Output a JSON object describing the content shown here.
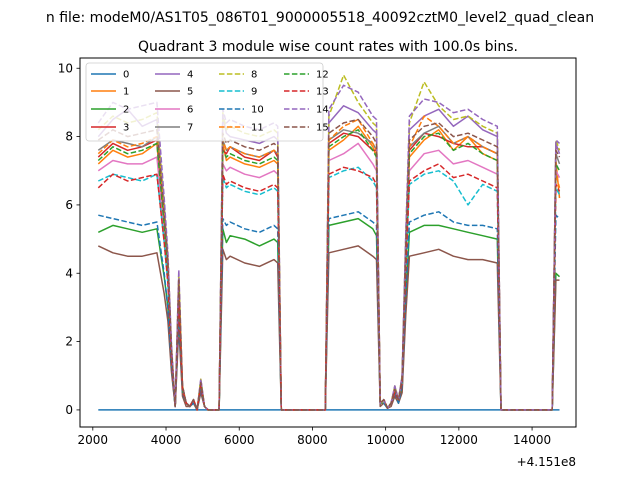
{
  "figure": {
    "suptitle": "n file: modeM0/AS1T05_086T01_9000005518_40092cztM0_level2_quad_clean",
    "offset_label": "+4.151e8"
  },
  "chart_data": {
    "type": "line",
    "title": "Quadrant 3 module wise count rates with 100.0s bins.",
    "xlabel": "",
    "ylabel": "",
    "xlim": [
      1650,
      15200
    ],
    "ylim": [
      -0.5,
      10.3
    ],
    "x_offset": 415100000,
    "xticks": [
      2000,
      4000,
      6000,
      8000,
      10000,
      12000,
      14000
    ],
    "yticks": [
      0,
      2,
      4,
      6,
      8,
      10
    ],
    "grid": false,
    "legend": {
      "placement": "upper-left",
      "columns": 4
    },
    "x": [
      2150,
      2550,
      2950,
      3350,
      3750,
      3950,
      4050,
      4150,
      4250,
      4350,
      4450,
      4550,
      4650,
      4750,
      4850,
      4950,
      5050,
      5150,
      5250,
      5350,
      5450,
      5550,
      5650,
      5750,
      6150,
      6550,
      6950,
      7050,
      7150,
      7550,
      7950,
      8150,
      8250,
      8350,
      8450,
      8850,
      9250,
      9650,
      9750,
      9850,
      9950,
      10050,
      10150,
      10250,
      10350,
      10450,
      10550,
      10650,
      11050,
      11450,
      11850,
      12250,
      12650,
      13050,
      13150,
      13250,
      13350,
      13750,
      14150,
      14450,
      14550,
      14650,
      14750
    ],
    "series": [
      {
        "name": "0",
        "color": "#1f77b4",
        "dash": "solid",
        "values": [
          0,
          0,
          0,
          0,
          0,
          0,
          0,
          0,
          0,
          0,
          0,
          0,
          0,
          0,
          0,
          0,
          0,
          0,
          0,
          0,
          0,
          0,
          0,
          0,
          0,
          0,
          0,
          0,
          0,
          0,
          0,
          0,
          0,
          0,
          0,
          0,
          0,
          0,
          0,
          0,
          0,
          0,
          0,
          0,
          0,
          0,
          0,
          0,
          0,
          0,
          0,
          0,
          0,
          0,
          0,
          0,
          0,
          0,
          0,
          0,
          0,
          0,
          0
        ]
      },
      {
        "name": "1",
        "color": "#ff7f0e",
        "dash": "solid",
        "values": [
          7.2,
          7.6,
          7.4,
          7.5,
          7.8,
          5.3,
          4.0,
          1.6,
          0.1,
          3.5,
          0.6,
          0.2,
          0.1,
          0.3,
          0.0,
          0.8,
          0.1,
          0.0,
          0.0,
          0.0,
          0.0,
          7.8,
          7.3,
          7.4,
          7.2,
          7.1,
          7.3,
          7.2,
          0,
          0,
          0,
          0,
          0,
          0,
          7.6,
          7.9,
          8.3,
          7.7,
          7.4,
          0.2,
          0.3,
          0.05,
          0.2,
          0.6,
          0.3,
          0.9,
          4.5,
          7.4,
          7.9,
          8.2,
          7.6,
          8.0,
          7.5,
          7.3,
          0,
          0,
          0,
          0,
          0,
          0,
          0,
          7.3,
          6.2
        ]
      },
      {
        "name": "2",
        "color": "#2ca02c",
        "dash": "solid",
        "values": [
          5.2,
          5.4,
          5.3,
          5.2,
          5.3,
          3.9,
          3.0,
          1.2,
          0.1,
          2.7,
          0.5,
          0.2,
          0.1,
          0.2,
          0.0,
          0.6,
          0.1,
          0.0,
          0.0,
          0.0,
          0.0,
          5.3,
          4.9,
          5.1,
          5.0,
          4.8,
          5.0,
          4.9,
          0,
          0,
          0,
          0,
          0,
          0,
          5.4,
          5.5,
          5.6,
          5.3,
          5.1,
          0.2,
          0.2,
          0.05,
          0.2,
          0.4,
          0.2,
          0.6,
          3.2,
          5.2,
          5.4,
          5.4,
          5.3,
          5.2,
          5.1,
          5.0,
          0,
          0,
          0,
          0,
          0,
          0,
          0,
          4.0,
          3.9
        ]
      },
      {
        "name": "3",
        "color": "#d62728",
        "dash": "solid",
        "values": [
          7.4,
          7.8,
          7.6,
          7.7,
          7.9,
          5.5,
          4.1,
          1.7,
          0.1,
          3.6,
          0.6,
          0.2,
          0.1,
          0.3,
          0.0,
          0.8,
          0.1,
          0.0,
          0.0,
          0.0,
          0.0,
          7.6,
          7.5,
          7.7,
          7.4,
          7.3,
          7.6,
          7.4,
          0,
          0,
          0,
          0,
          0,
          0,
          7.8,
          8.1,
          8.0,
          7.6,
          7.6,
          0.2,
          0.3,
          0.05,
          0.2,
          0.6,
          0.3,
          0.9,
          4.6,
          7.6,
          8.1,
          8.0,
          7.8,
          7.7,
          7.7,
          7.5,
          0,
          0,
          0,
          0,
          0,
          0,
          0,
          7.7,
          7.6
        ]
      },
      {
        "name": "4",
        "color": "#9467bd",
        "dash": "solid",
        "values": [
          8.0,
          8.5,
          8.8,
          8.3,
          8.5,
          6.0,
          4.4,
          1.8,
          0.1,
          3.9,
          0.7,
          0.2,
          0.1,
          0.3,
          0.0,
          0.9,
          0.1,
          0.0,
          0.0,
          0.0,
          0.0,
          8.6,
          8.1,
          8.0,
          7.9,
          7.8,
          8.0,
          7.9,
          0,
          0,
          0,
          0,
          0,
          0,
          8.4,
          8.9,
          8.7,
          8.2,
          8.1,
          0.2,
          0.3,
          0.05,
          0.2,
          0.7,
          0.3,
          1.0,
          5.0,
          8.2,
          8.6,
          8.8,
          8.3,
          8.6,
          8.2,
          8.0,
          0,
          0,
          0,
          0,
          0,
          0,
          0,
          7.8,
          7.5
        ]
      },
      {
        "name": "5",
        "color": "#8c564b",
        "dash": "solid",
        "values": [
          4.8,
          4.6,
          4.5,
          4.5,
          4.6,
          3.4,
          2.6,
          1.1,
          0.1,
          2.4,
          0.4,
          0.1,
          0.1,
          0.2,
          0.0,
          0.5,
          0.1,
          0.0,
          0.0,
          0.0,
          0.0,
          4.7,
          4.4,
          4.5,
          4.3,
          4.2,
          4.4,
          4.3,
          0,
          0,
          0,
          0,
          0,
          0,
          4.6,
          4.7,
          4.8,
          4.5,
          4.4,
          0.1,
          0.2,
          0.05,
          0.1,
          0.4,
          0.2,
          0.5,
          2.8,
          4.5,
          4.6,
          4.7,
          4.5,
          4.4,
          4.4,
          4.3,
          0,
          0,
          0,
          0,
          0,
          0,
          0,
          3.8,
          3.8
        ]
      },
      {
        "name": "6",
        "color": "#e377c2",
        "dash": "solid",
        "values": [
          7.0,
          7.3,
          7.2,
          7.2,
          7.4,
          5.2,
          3.9,
          1.6,
          0.1,
          3.4,
          0.6,
          0.2,
          0.1,
          0.3,
          0.0,
          0.8,
          0.1,
          0.0,
          0.0,
          0.0,
          0.0,
          7.2,
          7.0,
          7.1,
          6.9,
          6.8,
          7.0,
          6.9,
          0,
          0,
          0,
          0,
          0,
          0,
          7.3,
          7.5,
          7.8,
          7.2,
          7.0,
          0.2,
          0.3,
          0.05,
          0.2,
          0.6,
          0.3,
          0.8,
          4.3,
          7.0,
          7.5,
          7.6,
          7.2,
          7.3,
          7.1,
          6.9,
          0,
          0,
          0,
          0,
          0,
          0,
          0,
          7.0,
          6.8
        ]
      },
      {
        "name": "7",
        "color": "#7f7f7f",
        "dash": "solid",
        "values": [
          7.6,
          7.9,
          7.8,
          7.7,
          8.0,
          5.6,
          4.2,
          1.7,
          0.1,
          3.6,
          0.6,
          0.2,
          0.1,
          0.3,
          0.0,
          0.8,
          0.1,
          0.0,
          0.0,
          0.0,
          0.0,
          7.9,
          7.6,
          7.7,
          7.5,
          7.4,
          7.6,
          7.5,
          0,
          0,
          0,
          0,
          0,
          0,
          7.9,
          8.2,
          8.1,
          7.8,
          7.6,
          0.2,
          0.3,
          0.05,
          0.2,
          0.6,
          0.3,
          0.9,
          4.7,
          7.7,
          8.1,
          8.3,
          7.8,
          8.0,
          7.7,
          7.5,
          0,
          0,
          0,
          0,
          0,
          0,
          0,
          7.5,
          7.2
        ]
      },
      {
        "name": "8",
        "color": "#bcbd22",
        "dash": "dashed",
        "values": [
          8.2,
          8.6,
          8.4,
          8.5,
          8.7,
          6.0,
          4.5,
          1.8,
          0.1,
          4.0,
          0.7,
          0.2,
          0.1,
          0.3,
          0.0,
          0.9,
          0.1,
          0.0,
          0.0,
          0.0,
          0.0,
          8.7,
          8.2,
          8.3,
          8.1,
          8.0,
          8.2,
          8.1,
          0,
          0,
          0,
          0,
          0,
          0,
          8.6,
          9.8,
          9.0,
          8.4,
          8.3,
          0.2,
          0.3,
          0.05,
          0.2,
          0.7,
          0.3,
          1.0,
          5.1,
          8.4,
          9.6,
          8.9,
          8.5,
          8.6,
          8.3,
          8.1,
          0,
          0,
          0,
          0,
          0,
          0,
          0,
          7.9,
          7.6
        ]
      },
      {
        "name": "9",
        "color": "#17becf",
        "dash": "dashed",
        "values": [
          6.7,
          6.9,
          6.8,
          6.7,
          6.9,
          4.9,
          3.7,
          1.5,
          0.1,
          3.2,
          0.6,
          0.2,
          0.1,
          0.3,
          0.0,
          0.7,
          0.1,
          0.0,
          0.0,
          0.0,
          0.0,
          6.8,
          6.5,
          6.6,
          6.4,
          6.3,
          6.5,
          6.4,
          0,
          0,
          0,
          0,
          0,
          0,
          6.8,
          7.0,
          7.1,
          6.7,
          6.5,
          0.2,
          0.3,
          0.05,
          0.2,
          0.5,
          0.3,
          0.8,
          4.1,
          6.6,
          6.9,
          7.0,
          6.7,
          6.0,
          6.6,
          6.4,
          0,
          0,
          0,
          0,
          0,
          0,
          0,
          6.5,
          6.3
        ]
      },
      {
        "name": "10",
        "color": "#1f77b4",
        "dash": "dashed",
        "values": [
          5.7,
          5.6,
          5.5,
          5.4,
          5.5,
          4.0,
          3.0,
          1.3,
          0.1,
          2.8,
          0.5,
          0.2,
          0.1,
          0.2,
          0.0,
          0.6,
          0.1,
          0.0,
          0.0,
          0.0,
          0.0,
          5.6,
          5.4,
          5.5,
          5.3,
          5.2,
          5.4,
          5.3,
          0,
          0,
          0,
          0,
          0,
          0,
          5.6,
          5.7,
          5.8,
          5.5,
          5.4,
          0.2,
          0.2,
          0.05,
          0.2,
          0.5,
          0.2,
          0.7,
          3.4,
          5.5,
          5.7,
          5.8,
          5.5,
          5.4,
          5.4,
          5.3,
          0,
          0,
          0,
          0,
          0,
          0,
          0,
          5.7,
          5.6
        ]
      },
      {
        "name": "11",
        "color": "#ff7f0e",
        "dash": "dashed",
        "values": [
          7.5,
          7.9,
          7.7,
          7.8,
          8.0,
          5.6,
          4.2,
          1.7,
          0.1,
          3.6,
          0.6,
          0.2,
          0.1,
          0.3,
          0.0,
          0.8,
          0.1,
          0.0,
          0.0,
          0.0,
          0.0,
          7.9,
          7.6,
          7.7,
          7.5,
          7.4,
          7.6,
          7.5,
          0,
          0,
          0,
          0,
          0,
          0,
          7.9,
          8.3,
          8.5,
          7.8,
          7.6,
          0.2,
          0.3,
          0.05,
          0.2,
          0.6,
          0.3,
          0.9,
          4.7,
          7.7,
          8.6,
          8.3,
          7.8,
          8.0,
          7.7,
          7.5,
          0,
          0,
          0,
          0,
          0,
          0,
          0,
          6.9,
          6.5
        ]
      },
      {
        "name": "12",
        "color": "#2ca02c",
        "dash": "dashed",
        "values": [
          7.3,
          7.7,
          7.5,
          7.6,
          7.8,
          5.4,
          4.1,
          1.6,
          0.1,
          3.5,
          0.6,
          0.2,
          0.1,
          0.3,
          0.0,
          0.8,
          0.1,
          0.0,
          0.0,
          0.0,
          0.0,
          7.6,
          7.4,
          7.5,
          7.3,
          7.2,
          7.4,
          7.3,
          0,
          0,
          0,
          0,
          0,
          0,
          7.7,
          8.0,
          8.2,
          7.6,
          7.4,
          0.2,
          0.3,
          0.05,
          0.2,
          0.6,
          0.3,
          0.9,
          4.5,
          7.5,
          8.0,
          8.1,
          7.6,
          7.8,
          7.5,
          7.3,
          0,
          0,
          0,
          0,
          0,
          0,
          0,
          7.2,
          7.0
        ]
      },
      {
        "name": "13",
        "color": "#d62728",
        "dash": "dashed",
        "values": [
          6.5,
          6.9,
          6.7,
          6.8,
          6.9,
          4.9,
          3.7,
          1.5,
          0.1,
          3.2,
          0.6,
          0.2,
          0.1,
          0.3,
          0.0,
          0.7,
          0.1,
          0.0,
          0.0,
          0.0,
          0.0,
          6.9,
          6.6,
          6.7,
          6.5,
          6.4,
          6.6,
          6.5,
          0,
          0,
          0,
          0,
          0,
          0,
          6.9,
          7.1,
          7.0,
          6.8,
          6.6,
          0.2,
          0.3,
          0.05,
          0.2,
          0.5,
          0.3,
          0.8,
          4.1,
          6.7,
          7.0,
          7.2,
          6.8,
          6.9,
          6.7,
          6.5,
          0,
          0,
          0,
          0,
          0,
          0,
          0,
          6.6,
          6.4
        ]
      },
      {
        "name": "14",
        "color": "#9467bd",
        "dash": "dashed",
        "values": [
          8.4,
          9.0,
          8.8,
          8.9,
          9.0,
          6.2,
          4.6,
          1.9,
          0.1,
          4.1,
          0.7,
          0.2,
          0.1,
          0.3,
          0.0,
          0.9,
          0.1,
          0.0,
          0.0,
          0.0,
          0.0,
          8.8,
          8.4,
          8.5,
          8.3,
          8.2,
          8.4,
          8.3,
          0,
          0,
          0,
          0,
          0,
          0,
          8.8,
          9.5,
          9.3,
          8.6,
          8.5,
          0.2,
          0.3,
          0.05,
          0.2,
          0.7,
          0.3,
          1.0,
          5.2,
          8.6,
          9.1,
          9.0,
          8.7,
          8.8,
          8.5,
          8.3,
          0,
          0,
          0,
          0,
          0,
          0,
          0,
          7.9,
          7.8
        ]
      },
      {
        "name": "15",
        "color": "#8c564b",
        "dash": "dashed",
        "values": [
          7.9,
          8.2,
          8.0,
          8.1,
          8.2,
          5.7,
          4.3,
          1.8,
          0.1,
          3.8,
          0.7,
          0.2,
          0.1,
          0.3,
          0.0,
          0.8,
          0.1,
          0.0,
          0.0,
          0.0,
          0.0,
          8.1,
          7.8,
          7.9,
          7.7,
          7.6,
          7.8,
          7.7,
          0,
          0,
          0,
          0,
          0,
          0,
          8.1,
          8.4,
          8.5,
          8.0,
          7.8,
          0.2,
          0.3,
          0.05,
          0.2,
          0.6,
          0.3,
          0.9,
          4.8,
          7.9,
          8.3,
          8.4,
          8.0,
          8.1,
          7.9,
          7.7,
          0,
          0,
          0,
          0,
          0,
          0,
          0,
          7.6,
          7.4
        ]
      }
    ]
  }
}
